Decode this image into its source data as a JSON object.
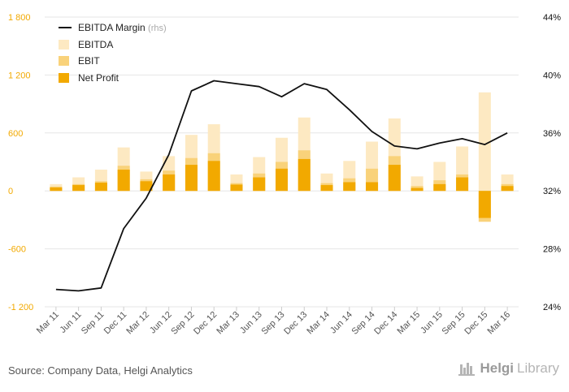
{
  "chart_data": {
    "type": "bar",
    "categories": [
      "Mar 11",
      "Jun 11",
      "Sep 11",
      "Dec 11",
      "Mar 12",
      "Jun 12",
      "Sep 12",
      "Dec 12",
      "Mar 13",
      "Jun 13",
      "Sep 13",
      "Dec 13",
      "Mar 14",
      "Jun 14",
      "Sep 14",
      "Dec 14",
      "Mar 15",
      "Jun 15",
      "Sep 15",
      "Dec 15",
      "Mar 16"
    ],
    "series": [
      {
        "name": "EBITDA",
        "kind": "bar",
        "axis": "left",
        "color": "#fde9c2",
        "values": [
          70,
          140,
          220,
          450,
          200,
          360,
          580,
          690,
          170,
          350,
          550,
          760,
          180,
          310,
          510,
          750,
          150,
          300,
          460,
          1020,
          170
        ]
      },
      {
        "name": "EBIT",
        "kind": "bar",
        "axis": "left",
        "color": "#f9d27a",
        "values": [
          45,
          70,
          100,
          260,
          120,
          210,
          340,
          390,
          80,
          180,
          300,
          420,
          80,
          130,
          230,
          360,
          50,
          110,
          170,
          -320,
          70
        ]
      },
      {
        "name": "Net Profit",
        "kind": "bar",
        "axis": "left",
        "color": "#f2a900",
        "values": [
          35,
          60,
          85,
          220,
          100,
          170,
          270,
          310,
          65,
          140,
          230,
          330,
          60,
          90,
          90,
          270,
          30,
          70,
          140,
          -280,
          50
        ]
      },
      {
        "name": "EBITDA Margin",
        "name_suffix": "(rhs)",
        "kind": "line",
        "axis": "right",
        "color": "#111111",
        "values": [
          25.2,
          25.1,
          25.3,
          29.4,
          31.5,
          34.5,
          38.9,
          39.6,
          39.4,
          39.2,
          38.5,
          39.4,
          39.0,
          37.6,
          36.1,
          35.1,
          34.9,
          35.3,
          35.6,
          35.2,
          36.0
        ]
      }
    ],
    "left_axis": {
      "min": -1200,
      "max": 1800,
      "ticks": [
        -1200,
        -600,
        0,
        600,
        1200,
        1800
      ],
      "tick_labels": [
        "-1 200",
        "-600",
        "0",
        "600",
        "1 200",
        "1 800"
      ]
    },
    "right_axis": {
      "min": 24,
      "max": 44,
      "ticks": [
        24,
        28,
        32,
        36,
        40,
        44
      ],
      "tick_labels": [
        "24%",
        "28%",
        "32%",
        "36%",
        "40%",
        "44%"
      ]
    },
    "legend_placement": "top-left",
    "grid": true
  },
  "source_text": "Source: Company Data, Helgi Analytics",
  "brand": {
    "part1": "Helgi",
    "part2": "Library",
    "icon": "helgi-library-logo-icon"
  },
  "colors": {
    "left_axis_labels": "#f2a900",
    "right_axis_labels": "#111111",
    "grid": "#e6e6e6"
  }
}
